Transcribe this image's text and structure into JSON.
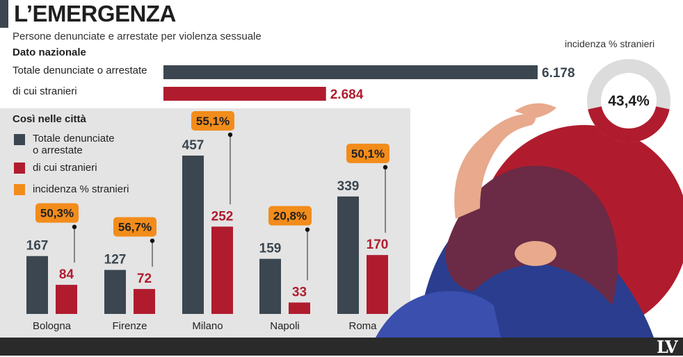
{
  "header": {
    "title": "L’EMERGENZA",
    "subtitle": "Persone denunciate e arrestate per violenza sessuale"
  },
  "national": {
    "title": "Dato nazionale",
    "rows": [
      {
        "label": "Totale denunciate o arrestate",
        "value": 6178,
        "display": "6.178"
      },
      {
        "label": "di cui stranieri",
        "value": 2684,
        "display": "2.684"
      }
    ]
  },
  "donut": {
    "title": "incidenza % stranieri",
    "value": 43.4,
    "label": "43,4%"
  },
  "cities": {
    "title": "Così nelle città",
    "legend": [
      {
        "label_line1": "Totale denunciate",
        "label_line2": "o arrestate",
        "color": "#3b4650"
      },
      {
        "label_line1": "di cui stranieri",
        "label_line2": "",
        "color": "#b01c2e"
      },
      {
        "label_line1": "incidenza % stranieri",
        "label_line2": "",
        "color": "#f28c1b"
      }
    ]
  },
  "colors": {
    "total": "#3b4650",
    "foreign": "#b01c2e",
    "incidence": "#f28c1b",
    "panel": "#e4e4e4",
    "donut_rest": "#dcdcdc"
  },
  "chart_data": {
    "type": "bar",
    "categories": [
      "Bologna",
      "Firenze",
      "Milano",
      "Napoli",
      "Roma"
    ],
    "series": [
      {
        "name": "Totale denunciate o arrestate",
        "values": [
          167,
          127,
          457,
          159,
          339
        ]
      },
      {
        "name": "di cui stranieri",
        "values": [
          84,
          72,
          252,
          33,
          170
        ]
      }
    ],
    "incidence_labels": [
      "50,3%",
      "56,7%",
      "55,1%",
      "20,8%",
      "50,1%"
    ],
    "incidence_values": [
      50.3,
      56.7,
      55.1,
      20.8,
      50.1
    ]
  },
  "footer": {
    "logo": "LV"
  }
}
